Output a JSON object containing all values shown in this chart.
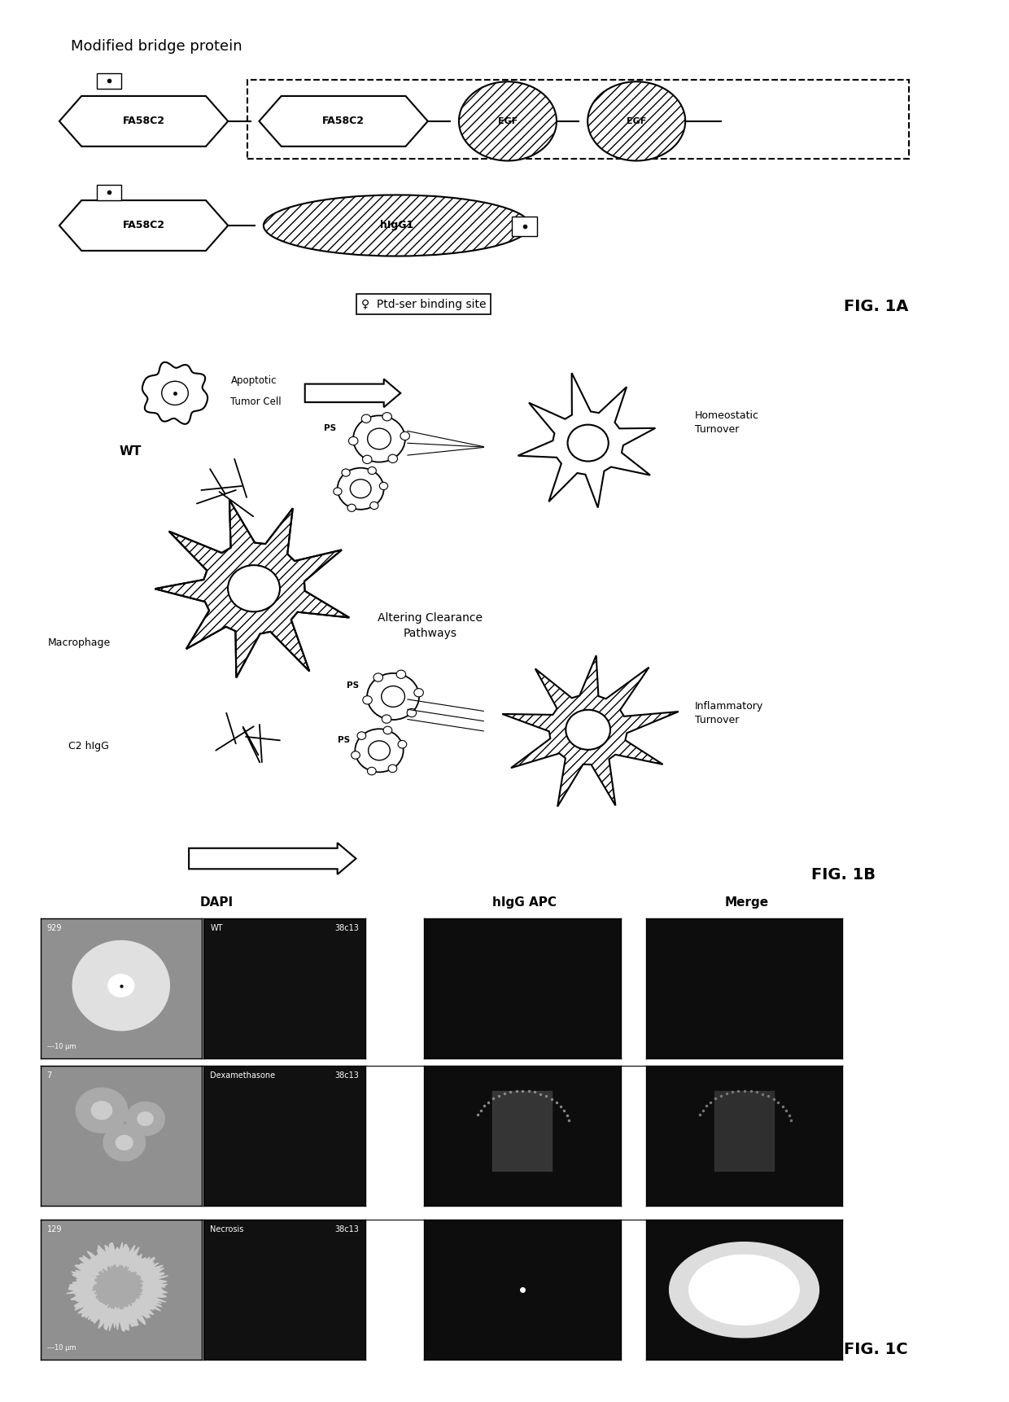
{
  "bg_color": "#ffffff",
  "fig_width": 12.4,
  "fig_height": 17.22,
  "panel_1a": {
    "title": "Modified bridge protein",
    "fig1a_label": "FIG. 1A",
    "ptd_label": "Ptd-ser binding site"
  },
  "panel_1b": {
    "fig1b_label": "FIG. 1B",
    "wt": "WT",
    "apoptotic": "Apoptotic\nTumor Cell",
    "macrophage": "Macrophage",
    "altering": "Altering Clearance\nPathways",
    "c2higg": "C2 hIgG",
    "homeostatic": "Homeostatic\nTurnover",
    "inflammatory": "Inflammatory\nTurnover"
  },
  "panel_1c": {
    "fig1c_label": "FIG. 1C",
    "col_headers": [
      "DAPI",
      "hIgG APC",
      "Merge"
    ],
    "row_labels": [
      [
        "929",
        "38c13",
        "WT"
      ],
      [
        "7",
        "38c13",
        "Dexamethasone"
      ],
      [
        "129",
        "38c13",
        "Necrosis"
      ]
    ],
    "scale_bars": [
      "---10 μm",
      null,
      "---10 μm"
    ]
  }
}
